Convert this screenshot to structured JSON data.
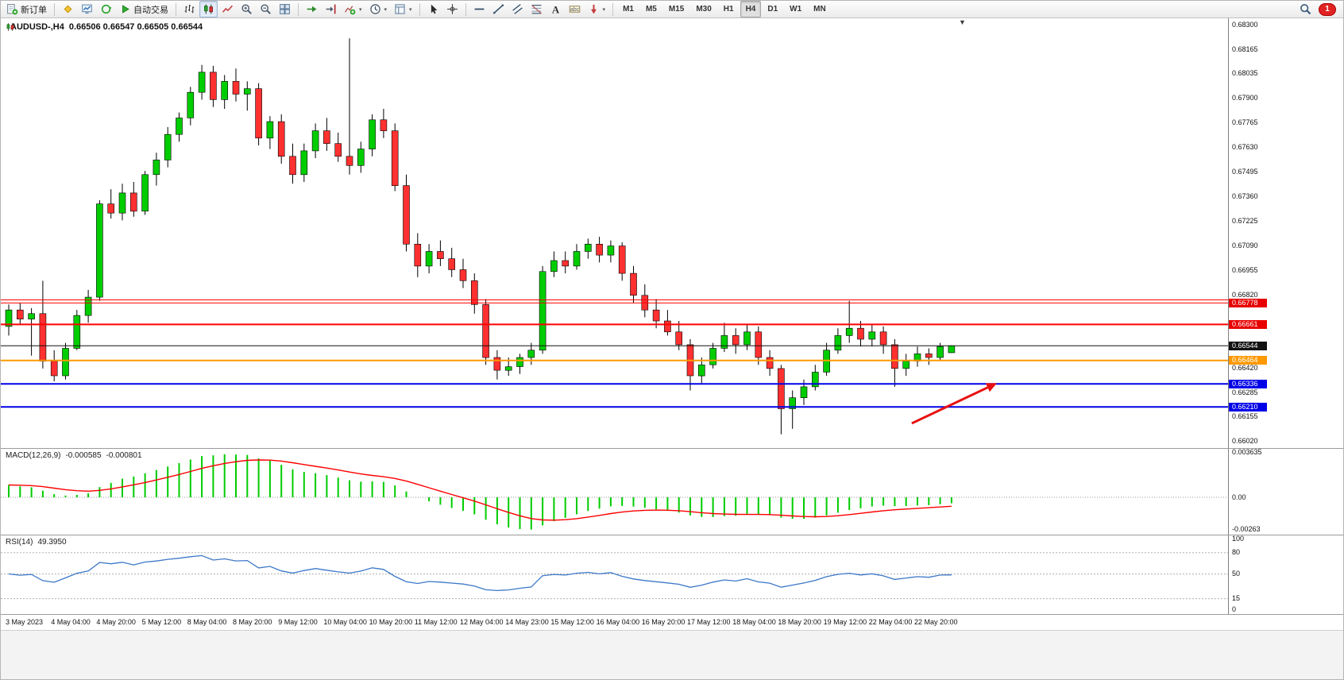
{
  "toolbar": {
    "items": [
      {
        "type": "button",
        "name": "new-order-button",
        "icon": "new-order",
        "label": "新订单"
      },
      {
        "type": "sep"
      },
      {
        "type": "button",
        "name": "metaeditor-button",
        "icon": "metaeditor"
      },
      {
        "type": "button",
        "name": "market-watch-button",
        "icon": "market-watch"
      },
      {
        "type": "button",
        "name": "data-window-button",
        "icon": "data-window"
      },
      {
        "type": "button",
        "name": "auto-trading-button",
        "icon": "play",
        "label": "自动交易"
      },
      {
        "type": "sep"
      },
      {
        "type": "button",
        "name": "bar-chart-button",
        "icon": "bars"
      },
      {
        "type": "button",
        "name": "candlestick-chart-button",
        "icon": "candles",
        "active": true
      },
      {
        "type": "button",
        "name": "line-chart-button",
        "icon": "line"
      },
      {
        "type": "button",
        "name": "zoom-in-button",
        "icon": "zoom-in"
      },
      {
        "type": "button",
        "name": "zoom-out-button",
        "icon": "zoom-out"
      },
      {
        "type": "button",
        "name": "tile-windows-button",
        "icon": "tile"
      },
      {
        "type": "sep"
      },
      {
        "type": "button",
        "name": "auto-scroll-button",
        "icon": "auto-scroll"
      },
      {
        "type": "button",
        "name": "chart-shift-button",
        "icon": "chart-shift"
      },
      {
        "type": "button",
        "name": "indicators-button",
        "icon": "indicators",
        "dropdown": true
      },
      {
        "type": "button",
        "name": "periods-button",
        "icon": "clock",
        "dropdown": true
      },
      {
        "type": "button",
        "name": "templates-button",
        "icon": "templates",
        "dropdown": true
      },
      {
        "type": "sep"
      },
      {
        "type": "button",
        "name": "cursor-button",
        "icon": "cursor"
      },
      {
        "type": "button",
        "name": "crosshair-button",
        "icon": "crosshair"
      },
      {
        "type": "sep"
      },
      {
        "type": "button",
        "name": "horizontal-line-button",
        "icon": "hline"
      },
      {
        "type": "button",
        "name": "trendline-button",
        "icon": "trendline"
      },
      {
        "type": "button",
        "name": "channel-button",
        "icon": "channel"
      },
      {
        "type": "button",
        "name": "fibonacci-button",
        "icon": "fibonacci"
      },
      {
        "type": "button",
        "name": "text-button",
        "icon": "text"
      },
      {
        "type": "button",
        "name": "label-button",
        "icon": "label"
      },
      {
        "type": "button",
        "name": "arrows-button",
        "icon": "arrow-marker",
        "dropdown": true
      },
      {
        "type": "sep"
      }
    ],
    "timeframes": [
      {
        "label": "M1"
      },
      {
        "label": "M5"
      },
      {
        "label": "M15"
      },
      {
        "label": "M30"
      },
      {
        "label": "H1"
      },
      {
        "label": "H4",
        "active": true
      },
      {
        "label": "D1"
      },
      {
        "label": "W1"
      },
      {
        "label": "MN"
      }
    ],
    "notification_count": "1"
  },
  "chart": {
    "symbol_title": "AUDUSD-,H4",
    "quote_ohlc": "0.66506 0.66547 0.66505 0.66544"
  },
  "chart_data": {
    "type": "candlestick",
    "symbol": "AUDUSD-",
    "timeframe": "H4",
    "last_quote": {
      "open": "0.66506",
      "high": "0.66547",
      "low": "0.66505",
      "close": "0.66544"
    },
    "price_top": 0.68335,
    "price_bottom": 0.65985,
    "colors": {
      "bull": "#00CD00",
      "bear": "#FF3030",
      "wick": "#000000"
    },
    "y_axis_labels": [
      "0.68300",
      "0.68165",
      "0.68035",
      "0.67900",
      "0.67765",
      "0.67630",
      "0.67495",
      "0.67360",
      "0.67225",
      "0.67090",
      "0.66955",
      "0.66820",
      "0.66420",
      "0.66285",
      "0.66155",
      "0.66020"
    ],
    "x_labels": [
      "3 May 2023",
      "4 May 04:00",
      "4 May 20:00",
      "5 May 12:00",
      "8 May 04:00",
      "8 May 20:00",
      "9 May 12:00",
      "10 May 04:00",
      "10 May 20:00",
      "11 May 12:00",
      "12 May 04:00",
      "14 May 23:00",
      "15 May 12:00",
      "16 May 04:00",
      "16 May 20:00",
      "17 May 12:00",
      "18 May 04:00",
      "18 May 20:00",
      "19 May 12:00",
      "22 May 04:00",
      "22 May 20:00"
    ],
    "ohlc": [
      [
        0.6665,
        0.6677,
        0.666,
        0.6674
      ],
      [
        0.6674,
        0.6678,
        0.6666,
        0.6669
      ],
      [
        0.6669,
        0.6675,
        0.6649,
        0.6672
      ],
      [
        0.6672,
        0.669,
        0.6642,
        0.6646
      ],
      [
        0.6646,
        0.6652,
        0.6635,
        0.6638
      ],
      [
        0.6638,
        0.6656,
        0.6636,
        0.6653
      ],
      [
        0.6653,
        0.6674,
        0.6652,
        0.6671
      ],
      [
        0.6671,
        0.6685,
        0.6667,
        0.6681
      ],
      [
        0.6681,
        0.6734,
        0.6679,
        0.6732
      ],
      [
        0.6732,
        0.674,
        0.6724,
        0.6727
      ],
      [
        0.6727,
        0.6743,
        0.6723,
        0.6738
      ],
      [
        0.6738,
        0.6744,
        0.6725,
        0.6728
      ],
      [
        0.6728,
        0.675,
        0.6726,
        0.6748
      ],
      [
        0.6748,
        0.676,
        0.6742,
        0.6756
      ],
      [
        0.6756,
        0.6774,
        0.6752,
        0.677
      ],
      [
        0.677,
        0.6782,
        0.6766,
        0.6779
      ],
      [
        0.6779,
        0.6796,
        0.6775,
        0.6793
      ],
      [
        0.6793,
        0.6808,
        0.6789,
        0.6804
      ],
      [
        0.6804,
        0.68075,
        0.6785,
        0.6789
      ],
      [
        0.6789,
        0.68025,
        0.6784,
        0.6799
      ],
      [
        0.6799,
        0.6806,
        0.6788,
        0.6792
      ],
      [
        0.6792,
        0.6799,
        0.6783,
        0.6795
      ],
      [
        0.6795,
        0.6798,
        0.6764,
        0.6768
      ],
      [
        0.6768,
        0.678,
        0.6762,
        0.6777
      ],
      [
        0.6777,
        0.6781,
        0.6754,
        0.6758
      ],
      [
        0.6758,
        0.6765,
        0.6743,
        0.6748
      ],
      [
        0.6748,
        0.6765,
        0.6744,
        0.6761
      ],
      [
        0.6761,
        0.6776,
        0.6757,
        0.6772
      ],
      [
        0.6772,
        0.6779,
        0.6761,
        0.6765
      ],
      [
        0.6765,
        0.6771,
        0.6755,
        0.6758
      ],
      [
        0.6758,
        0.68225,
        0.6748,
        0.6753
      ],
      [
        0.6753,
        0.6766,
        0.6749,
        0.6762
      ],
      [
        0.6762,
        0.6781,
        0.6758,
        0.6778
      ],
      [
        0.6778,
        0.6784,
        0.6768,
        0.6772
      ],
      [
        0.6772,
        0.6776,
        0.6739,
        0.6742
      ],
      [
        0.6742,
        0.6748,
        0.6706,
        0.671
      ],
      [
        0.671,
        0.6716,
        0.6692,
        0.6698
      ],
      [
        0.6698,
        0.671,
        0.6694,
        0.6706
      ],
      [
        0.6706,
        0.6712,
        0.6698,
        0.6702
      ],
      [
        0.6702,
        0.6708,
        0.6692,
        0.6696
      ],
      [
        0.6696,
        0.6702,
        0.6686,
        0.669
      ],
      [
        0.669,
        0.6694,
        0.6672,
        0.6677
      ],
      [
        0.6677,
        0.668,
        0.6644,
        0.6648
      ],
      [
        0.6648,
        0.6652,
        0.6636,
        0.6641
      ],
      [
        0.6641,
        0.6648,
        0.6638,
        0.6643
      ],
      [
        0.6643,
        0.665,
        0.6639,
        0.6648
      ],
      [
        0.6648,
        0.6656,
        0.6644,
        0.6652
      ],
      [
        0.6652,
        0.6698,
        0.665,
        0.6695
      ],
      [
        0.6695,
        0.6706,
        0.6692,
        0.6701
      ],
      [
        0.6701,
        0.6706,
        0.6694,
        0.6698
      ],
      [
        0.6698,
        0.671,
        0.6696,
        0.6706
      ],
      [
        0.6706,
        0.6713,
        0.6702,
        0.671
      ],
      [
        0.671,
        0.6714,
        0.67,
        0.6704
      ],
      [
        0.6704,
        0.6712,
        0.67,
        0.6709
      ],
      [
        0.6709,
        0.6711,
        0.669,
        0.6694
      ],
      [
        0.6694,
        0.6698,
        0.6678,
        0.6682
      ],
      [
        0.6682,
        0.6688,
        0.667,
        0.6674
      ],
      [
        0.6674,
        0.668,
        0.6664,
        0.6668
      ],
      [
        0.6668,
        0.6674,
        0.666,
        0.6662
      ],
      [
        0.6662,
        0.6668,
        0.6652,
        0.6655
      ],
      [
        0.6655,
        0.6658,
        0.663,
        0.6638
      ],
      [
        0.6638,
        0.6648,
        0.6634,
        0.6644
      ],
      [
        0.6644,
        0.6656,
        0.6642,
        0.6653
      ],
      [
        0.6653,
        0.6667,
        0.6651,
        0.666
      ],
      [
        0.666,
        0.6664,
        0.665,
        0.6655
      ],
      [
        0.6655,
        0.6666,
        0.6652,
        0.6662
      ],
      [
        0.6662,
        0.6665,
        0.6644,
        0.6648
      ],
      [
        0.6648,
        0.6652,
        0.6638,
        0.6642
      ],
      [
        0.6642,
        0.6644,
        0.6606,
        0.662
      ],
      [
        0.662,
        0.663,
        0.6609,
        0.6626
      ],
      [
        0.6626,
        0.6636,
        0.6622,
        0.6632
      ],
      [
        0.6632,
        0.6644,
        0.663,
        0.664
      ],
      [
        0.664,
        0.6656,
        0.6638,
        0.6652
      ],
      [
        0.6652,
        0.6664,
        0.665,
        0.666
      ],
      [
        0.666,
        0.6679,
        0.6656,
        0.6664
      ],
      [
        0.6664,
        0.6668,
        0.6654,
        0.6658
      ],
      [
        0.6658,
        0.6666,
        0.6654,
        0.6662
      ],
      [
        0.6662,
        0.6665,
        0.665,
        0.6655
      ],
      [
        0.6655,
        0.6658,
        0.6632,
        0.6642
      ],
      [
        0.6642,
        0.665,
        0.6638,
        0.6646
      ],
      [
        0.6646,
        0.6654,
        0.6643,
        0.665
      ],
      [
        0.665,
        0.6653,
        0.6644,
        0.6648
      ],
      [
        0.6648,
        0.6656,
        0.6646,
        0.6654
      ],
      [
        0.66506,
        0.66547,
        0.66505,
        0.66544
      ]
    ],
    "hlines": [
      {
        "price": 0.66795,
        "color": "#FF0000",
        "width": 1
      },
      {
        "price": 0.66778,
        "color": "#FF0000",
        "width": 1,
        "label": "0.66778",
        "label_bg": "#E80000"
      },
      {
        "price": 0.66661,
        "color": "#FF0000",
        "width": 2,
        "label": "0.66661",
        "label_bg": "#E80000"
      },
      {
        "price": 0.66544,
        "color": "#111111",
        "width": 1,
        "label": "0.66544",
        "label_bg": "#111111"
      },
      {
        "price": 0.66464,
        "color": "#FF9900",
        "width": 2,
        "label": "0.66464",
        "label_bg": "#FF9900"
      },
      {
        "price": 0.66336,
        "color": "#0000E8",
        "width": 2,
        "label": "0.66336",
        "label_bg": "#0000E8"
      },
      {
        "price": 0.6621,
        "color": "#0000E8",
        "width": 2,
        "label": "0.66210",
        "label_bg": "#0000E8"
      }
    ],
    "arrow": {
      "from_bar": 79.5,
      "from_price": 0.6612,
      "to_bar": 87,
      "to_price": 0.6634,
      "color": "#E81010"
    }
  },
  "macd": {
    "label": "MACD(12,26,9)",
    "value_main": "-0.000585",
    "value_signal": "-0.000801",
    "axis_labels": [
      "0.003635",
      "0.00",
      "-0.00263"
    ],
    "histogram_color": "#00CC00",
    "signal_color": "#FF0000"
  },
  "rsi": {
    "label": "RSI(14)",
    "value": "49.3950",
    "line_color": "#3C78C8",
    "axis_labels": [
      "100",
      "80",
      "50",
      "15",
      "0"
    ],
    "level_lines": [
      80,
      50,
      15
    ]
  }
}
